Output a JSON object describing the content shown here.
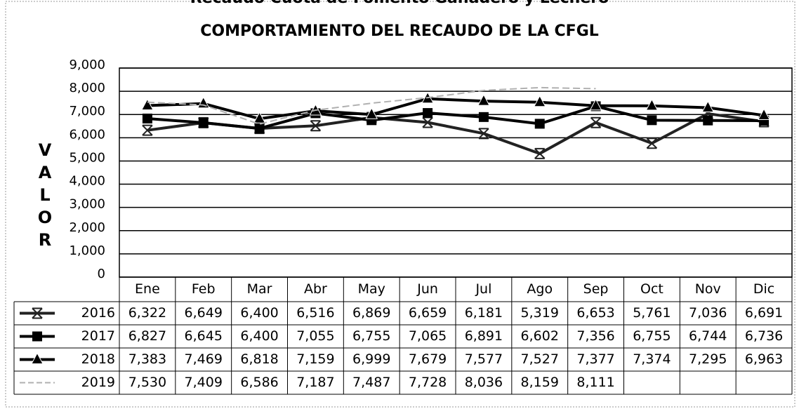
{
  "chart_data": {
    "type": "line",
    "page_title": "Recaudo Cuota de Fomento Ganadero y Lechero",
    "title": "COMPORTAMIENTO DEL RECAUDO DE LA CFGL",
    "y_label": "VALOR",
    "categories": [
      "Ene",
      "Feb",
      "Mar",
      "Abr",
      "May",
      "Jun",
      "Jul",
      "Ago",
      "Sep",
      "Oct",
      "Nov",
      "Dic"
    ],
    "ylim": [
      0,
      9000
    ],
    "yticks": [
      0,
      {
        "value": 1000,
        "label": "1,000"
      },
      {
        "value": 2000,
        "label": "2,000"
      },
      {
        "value": 3000,
        "label": "3,000"
      },
      {
        "value": 4000,
        "label": "4,000"
      },
      {
        "value": 5000,
        "label": "5,000"
      },
      {
        "value": 6000,
        "label": "6,000"
      },
      {
        "value": 7000,
        "label": "7,000"
      },
      {
        "value": 8000,
        "label": "8,000"
      },
      {
        "value": 9000,
        "label": "9,000"
      }
    ],
    "grid": true,
    "series": [
      {
        "name": "2016",
        "color": "#222222",
        "marker": "x",
        "values": [
          6322,
          6649,
          6400,
          6516,
          6869,
          6659,
          6181,
          5319,
          6653,
          5761,
          7036,
          6691
        ],
        "value_labels": [
          "6,322",
          "6,649",
          "6,400",
          "6,516",
          "6,869",
          "6,659",
          "6,181",
          "5,319",
          "6,653",
          "5,761",
          "7,036",
          "6,691"
        ]
      },
      {
        "name": "2017",
        "color": "#000000",
        "marker": "square",
        "values": [
          6827,
          6645,
          6400,
          7055,
          6755,
          7065,
          6891,
          6602,
          7356,
          6755,
          6744,
          6736
        ],
        "value_labels": [
          "6,827",
          "6,645",
          "6,400",
          "7,055",
          "6,755",
          "7,065",
          "6,891",
          "6,602",
          "7,356",
          "6,755",
          "6,744",
          "6,736"
        ]
      },
      {
        "name": "2018",
        "color": "#000000",
        "marker": "triangle",
        "values": [
          7383,
          7469,
          6818,
          7159,
          6999,
          7679,
          7577,
          7527,
          7377,
          7374,
          7295,
          6963
        ],
        "value_labels": [
          "7,383",
          "7,469",
          "6,818",
          "7,159",
          "6,999",
          "7,679",
          "7,577",
          "7,527",
          "7,377",
          "7,374",
          "7,295",
          "6,963"
        ]
      },
      {
        "name": "2019",
        "color": "#b0b0b0",
        "marker": "none",
        "values": [
          7530,
          7409,
          6586,
          7187,
          7487,
          7728,
          8036,
          8159,
          8111,
          null,
          null,
          null
        ],
        "value_labels": [
          "7,530",
          "7,409",
          "6,586",
          "7,187",
          "7,487",
          "7,728",
          "8,036",
          "8,159",
          "8,111",
          null,
          null,
          null
        ]
      }
    ]
  }
}
